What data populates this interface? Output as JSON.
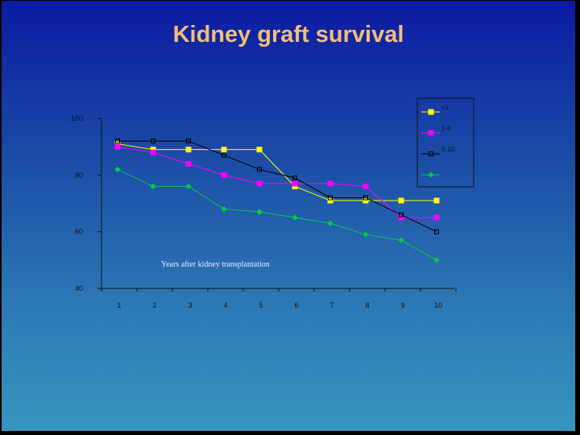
{
  "slide": {
    "title": "Kidney graft survival"
  },
  "chart_data": {
    "type": "line",
    "title": "Kidney graft survival",
    "annotation": "Years after kidney transplantation",
    "x": [
      1,
      2,
      3,
      4,
      5,
      6,
      7,
      8,
      9,
      10
    ],
    "ylim": [
      40,
      100
    ],
    "yticks": [
      40,
      60,
      80,
      100
    ],
    "grid": false,
    "legend_position": "top-right",
    "series": [
      {
        "name": "<1",
        "marker": "filled-square",
        "color": "#ffff00",
        "values": [
          91,
          89,
          89,
          89,
          89,
          76,
          71,
          71,
          71,
          71
        ]
      },
      {
        "name": "1-4",
        "marker": "filled-square",
        "color": "#ff00ff",
        "values": [
          90,
          88,
          84,
          80,
          77,
          77,
          77,
          76,
          65,
          65
        ]
      },
      {
        "name": "5-10",
        "marker": "open-square",
        "color": "#000000",
        "values": [
          92,
          92,
          92,
          87,
          82,
          79,
          72,
          72,
          66,
          60
        ]
      },
      {
        "name": "",
        "marker": "diamond",
        "color": "#00cc44",
        "values": [
          82,
          76,
          76,
          68,
          67,
          65,
          63,
          59,
          57,
          50
        ]
      }
    ]
  }
}
